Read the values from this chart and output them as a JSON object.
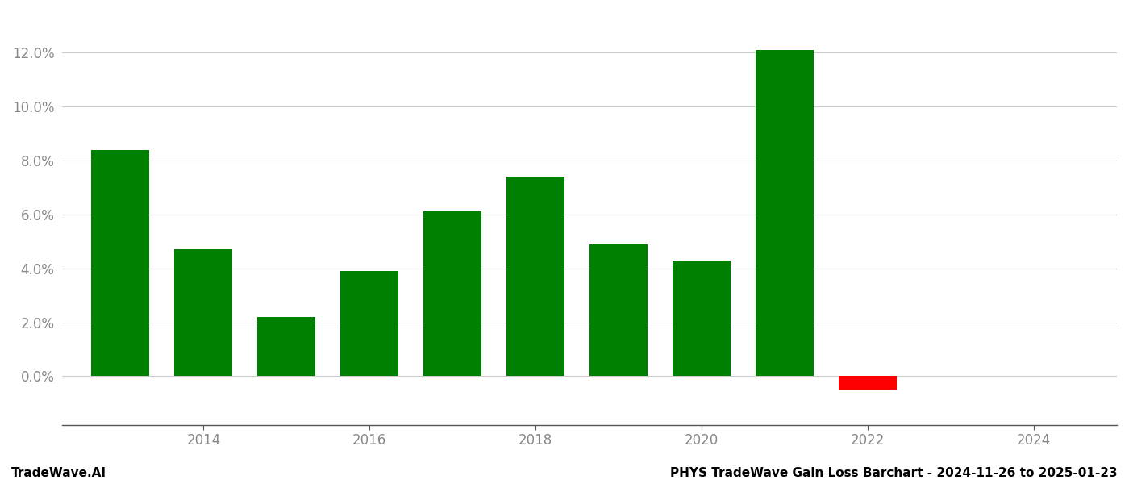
{
  "bar_positions": [
    2013,
    2014,
    2015,
    2016,
    2017,
    2018,
    2019,
    2020,
    2021,
    2022,
    2023
  ],
  "values": [
    0.084,
    0.047,
    0.022,
    0.039,
    0.061,
    0.074,
    0.049,
    0.043,
    0.121,
    -0.005,
    null
  ],
  "bar_colors_positive": "#008000",
  "bar_color_negative": "#ff0000",
  "background_color": "#ffffff",
  "footer_left": "TradeWave.AI",
  "footer_right": "PHYS TradeWave Gain Loss Barchart - 2024-11-26 to 2025-01-23",
  "ytick_labels": [
    "0.0%",
    "2.0%",
    "4.0%",
    "6.0%",
    "8.0%",
    "10.0%",
    "12.0%"
  ],
  "ytick_values": [
    0.0,
    0.02,
    0.04,
    0.06,
    0.08,
    0.1,
    0.12
  ],
  "ylim": [
    -0.018,
    0.135
  ],
  "xtick_positions": [
    2014,
    2016,
    2018,
    2020,
    2022,
    2024
  ],
  "xtick_labels": [
    "2014",
    "2016",
    "2018",
    "2020",
    "2022",
    "2024"
  ],
  "xlim": [
    2012.3,
    2025.0
  ],
  "grid_color": "#cccccc",
  "tick_color": "#888888",
  "axis_color": "#555555",
  "footer_fontsize": 11,
  "bar_width": 0.7
}
